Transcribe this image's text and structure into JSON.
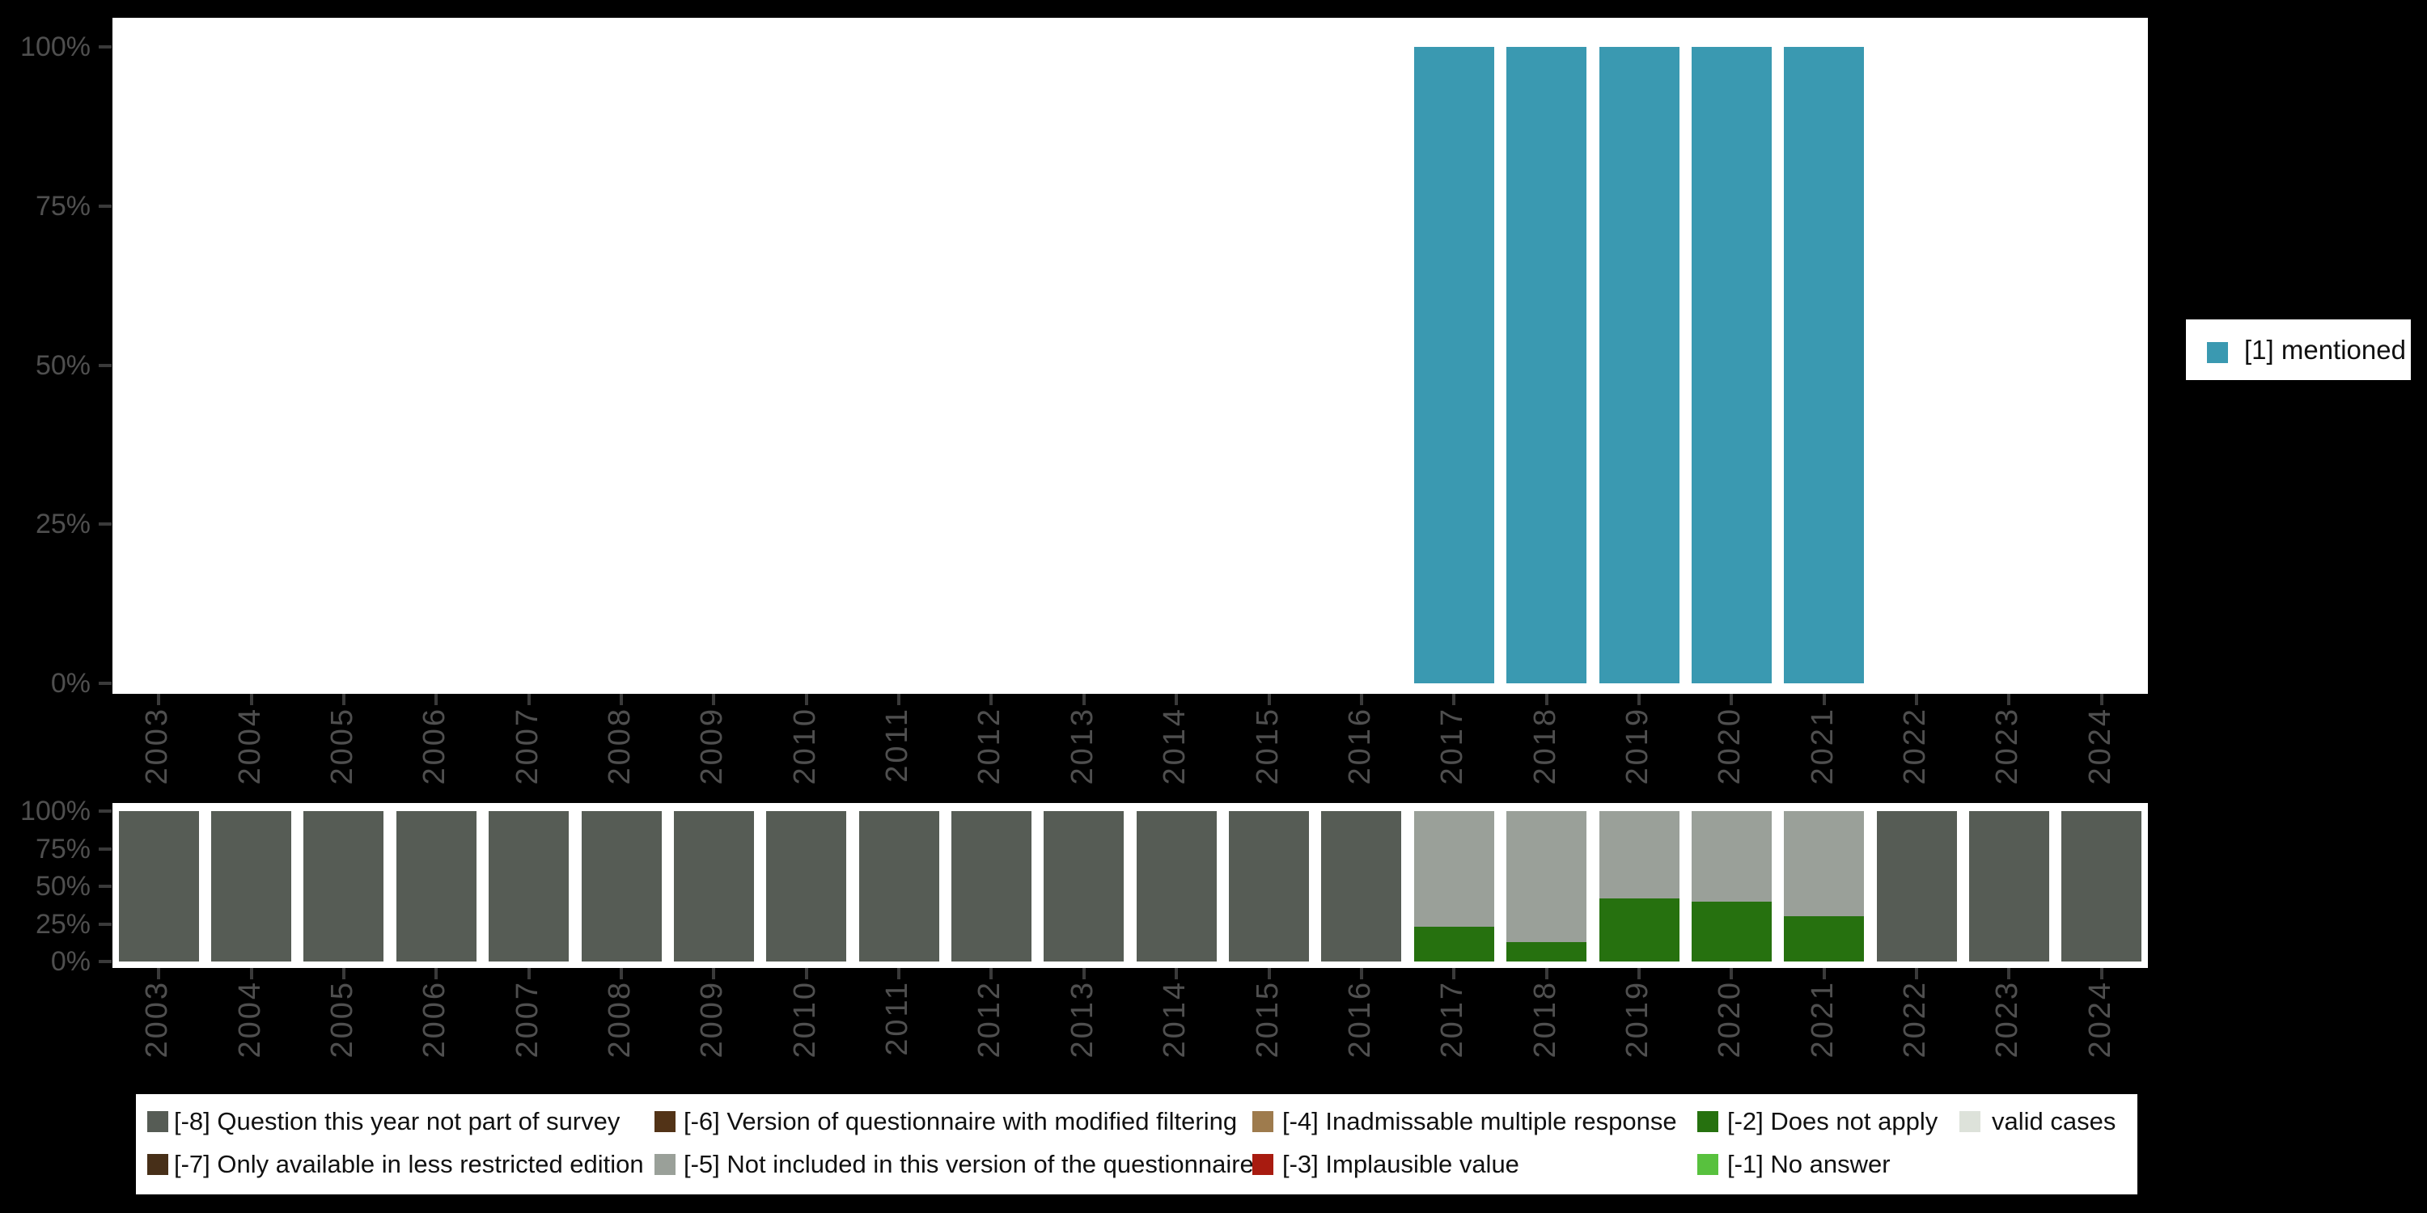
{
  "colors": {
    "background": "#000000",
    "panel": "#ffffff",
    "axis_text": "#4f4f4f",
    "tick": "#3a3a3a",
    "mentioned": "#3a99b1",
    "question_not_part": "#565c55",
    "less_restricted": "#472f18",
    "modified_filtering": "#523317",
    "not_included": "#9aa099",
    "inadmissable": "#9e7b4d",
    "implausible": "#a81b10",
    "does_not_apply": "#26710f",
    "no_answer": "#58c13e",
    "valid_cases": "#dde2da"
  },
  "axis": {
    "y_tick_labels": [
      "100%",
      "75%",
      "50%",
      "25%",
      "0%"
    ]
  },
  "chart_data": [
    {
      "type": "bar",
      "title": "",
      "categories": [
        "2003",
        "2004",
        "2005",
        "2006",
        "2007",
        "2008",
        "2009",
        "2010",
        "2011",
        "2012",
        "2013",
        "2014",
        "2015",
        "2016",
        "2017",
        "2018",
        "2019",
        "2020",
        "2021",
        "2022",
        "2023",
        "2024"
      ],
      "series": [
        {
          "name": "[1] mentioned",
          "color": "#3a99b1",
          "values": [
            null,
            null,
            null,
            null,
            null,
            null,
            null,
            null,
            null,
            null,
            null,
            null,
            null,
            null,
            100,
            100,
            100,
            100,
            100,
            null,
            null,
            null
          ]
        }
      ],
      "xlabel": "",
      "ylabel": "",
      "ylim": [
        0,
        100
      ],
      "yticks": [
        "0%",
        "25%",
        "50%",
        "75%",
        "100%"
      ],
      "grid": false,
      "legend_position": "right"
    },
    {
      "type": "bar",
      "title": "",
      "categories": [
        "2003",
        "2004",
        "2005",
        "2006",
        "2007",
        "2008",
        "2009",
        "2010",
        "2011",
        "2012",
        "2013",
        "2014",
        "2015",
        "2016",
        "2017",
        "2018",
        "2019",
        "2020",
        "2021",
        "2022",
        "2023",
        "2024"
      ],
      "series": [
        {
          "name": "[-8] Question this year not part of survey",
          "color": "#565c55",
          "values": [
            100,
            100,
            100,
            100,
            100,
            100,
            100,
            100,
            100,
            100,
            100,
            100,
            100,
            100,
            0,
            0,
            0,
            0,
            0,
            100,
            100,
            100
          ]
        },
        {
          "name": "[-2] Does not apply",
          "color": "#26710f",
          "values": [
            0,
            0,
            0,
            0,
            0,
            0,
            0,
            0,
            0,
            0,
            0,
            0,
            0,
            0,
            23,
            13,
            42,
            40,
            30,
            0,
            0,
            0
          ]
        },
        {
          "name": "[-5] Not included in this version of the questionnaire",
          "color": "#9aa099",
          "values": [
            0,
            0,
            0,
            0,
            0,
            0,
            0,
            0,
            0,
            0,
            0,
            0,
            0,
            0,
            77,
            87,
            58,
            60,
            70,
            0,
            0,
            0
          ]
        }
      ],
      "xlabel": "",
      "ylabel": "",
      "ylim": [
        0,
        100
      ],
      "yticks": [
        "0%",
        "25%",
        "50%",
        "75%",
        "100%"
      ],
      "grid": false,
      "legend_position": "bottom",
      "stacked": true
    }
  ],
  "legend_right": {
    "items": [
      {
        "label": "[1] mentioned",
        "color": "#3a99b1"
      }
    ]
  },
  "legend_bottom": {
    "columns": [
      [
        {
          "label": "[-8] Question this year not part of survey",
          "color": "#565c55"
        },
        {
          "label": "[-7] Only available in less restricted edition",
          "color": "#472f18"
        }
      ],
      [
        {
          "label": "[-6] Version of questionnaire with modified filtering",
          "color": "#523317"
        },
        {
          "label": "[-5] Not included in this version of the questionnaire",
          "color": "#9aa099"
        }
      ],
      [
        {
          "label": "[-4] Inadmissable multiple response",
          "color": "#9e7b4d"
        },
        {
          "label": "[-3] Implausible value",
          "color": "#a81b10"
        }
      ],
      [
        {
          "label": "[-2] Does not apply",
          "color": "#26710f"
        },
        {
          "label": "[-1] No answer",
          "color": "#58c13e"
        }
      ],
      [
        {
          "label": "valid cases",
          "color": "#dde2da"
        }
      ]
    ]
  }
}
